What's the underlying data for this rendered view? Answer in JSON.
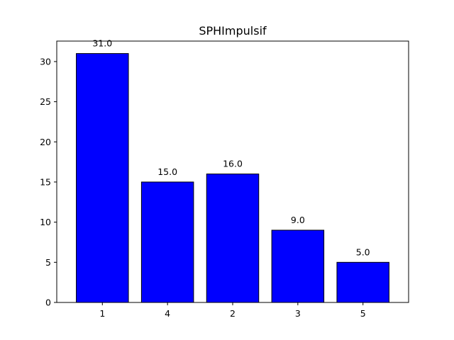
{
  "chart_data": {
    "type": "bar",
    "title": "SPHImpulsif",
    "xlabel": "",
    "ylabel": "",
    "categories": [
      "1",
      "4",
      "2",
      "3",
      "5"
    ],
    "values": [
      31.0,
      15.0,
      16.0,
      9.0,
      5.0
    ],
    "value_labels": [
      "31.0",
      "15.0",
      "16.0",
      "9.0",
      "5.0"
    ],
    "ylim": [
      0,
      32.55
    ],
    "yticks": [
      0,
      5,
      10,
      15,
      20,
      25,
      30
    ],
    "ytick_labels": [
      "0",
      "5",
      "10",
      "15",
      "20",
      "25",
      "30"
    ],
    "grid": false,
    "legend": "none",
    "colors": {
      "bar_fill": "#0000ff",
      "bar_edge": "#000000",
      "axes": "#000000",
      "background": "#ffffff"
    }
  }
}
